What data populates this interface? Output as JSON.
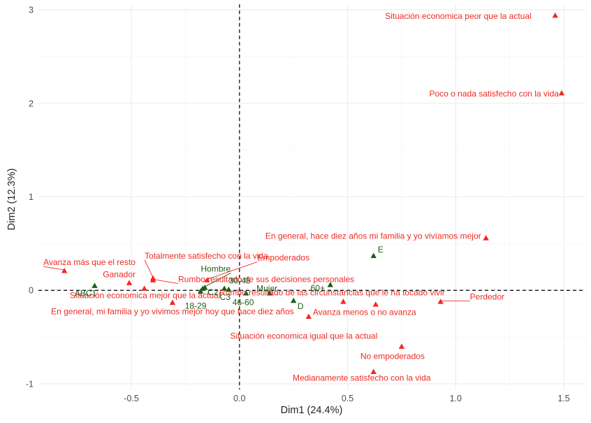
{
  "chart_data": {
    "type": "scatter",
    "title": "",
    "xlabel": "Dim1 (24.4%)",
    "ylabel": "Dim2 (12.3%)",
    "xlim": [
      -0.93,
      1.6
    ],
    "ylim": [
      -1.06,
      3.06
    ],
    "x_ticks": [
      -0.5,
      0.0,
      0.5,
      1.0,
      1.5
    ],
    "x_tick_labels": [
      "-0.5",
      "0.0",
      "0.5",
      "1.0",
      "1.5"
    ],
    "y_ticks": [
      -1,
      0,
      1,
      2,
      3
    ],
    "y_tick_labels": [
      "-1",
      "0",
      "1",
      "2",
      "3"
    ],
    "grid": true,
    "reference_lines": {
      "x": 0,
      "y": 0,
      "style": "dashed"
    },
    "colors": {
      "red_series": "#ee2a24",
      "green_series": "#1d5e1a"
    },
    "series": [
      {
        "color": "#ee2a24",
        "marker": "triangle",
        "points": [
          {
            "x": 1.46,
            "y": 2.94,
            "label": "Situación economica peor que la actual"
          },
          {
            "x": 1.49,
            "y": 2.11,
            "label": "Poco o nada satisfecho con la vida"
          },
          {
            "x": 1.14,
            "y": 0.56,
            "label": "En general, hace diez años mi familia y yo vivíamos mejor"
          },
          {
            "x": -0.81,
            "y": 0.21,
            "label": "Avanza más que el resto"
          },
          {
            "x": -0.51,
            "y": 0.08,
            "label": "Ganador"
          },
          {
            "x": -0.4,
            "y": 0.13,
            "label": "Totalmente satisfecho con la vida"
          },
          {
            "x": -0.15,
            "y": 0.11,
            "label": "Empoderados"
          },
          {
            "x": -0.4,
            "y": 0.11,
            "label": "Rumbo resultado de sus decisiones personales"
          },
          {
            "x": -0.44,
            "y": 0.02,
            "label": "Situación economica mejor que la actual"
          },
          {
            "x": -0.31,
            "y": -0.13,
            "label": "En general, mi familia y yo vivimos mejor hoy que hace diez años"
          },
          {
            "x": 0.48,
            "y": -0.12,
            "label": "Rumbo resultado de las circunstancias que le ha tocado vivir"
          },
          {
            "x": 0.93,
            "y": -0.12,
            "label": "Perdedor"
          },
          {
            "x": 0.63,
            "y": -0.15,
            "label": "Avanza menos o no avanza"
          },
          {
            "x": 0.32,
            "y": -0.28,
            "label": "Situación economica igual que la actual"
          },
          {
            "x": 0.75,
            "y": -0.6,
            "label": "No empoderados"
          },
          {
            "x": 0.62,
            "y": -0.87,
            "label": "Medianamente satisfecho con la vida"
          }
        ]
      },
      {
        "color": "#1d5e1a",
        "marker": "triangle",
        "points": [
          {
            "x": 0.62,
            "y": 0.37,
            "label": "E"
          },
          {
            "x": -0.17,
            "y": 0.02,
            "label": "Hombre"
          },
          {
            "x": -0.67,
            "y": 0.05,
            "label": "ABC1"
          },
          {
            "x": -0.16,
            "y": 0.03,
            "label": "C2"
          },
          {
            "x": -0.07,
            "y": 0.02,
            "label": "30-45"
          },
          {
            "x": -0.18,
            "y": -0.01,
            "label": "18-29"
          },
          {
            "x": -0.05,
            "y": 0.01,
            "label": "C3"
          },
          {
            "x": 0.03,
            "y": -0.03,
            "label": "46-60"
          },
          {
            "x": 0.14,
            "y": -0.03,
            "label": "Mujer"
          },
          {
            "x": 0.42,
            "y": 0.06,
            "label": "60+"
          },
          {
            "x": 0.25,
            "y": -0.11,
            "label": "D"
          }
        ]
      }
    ]
  }
}
